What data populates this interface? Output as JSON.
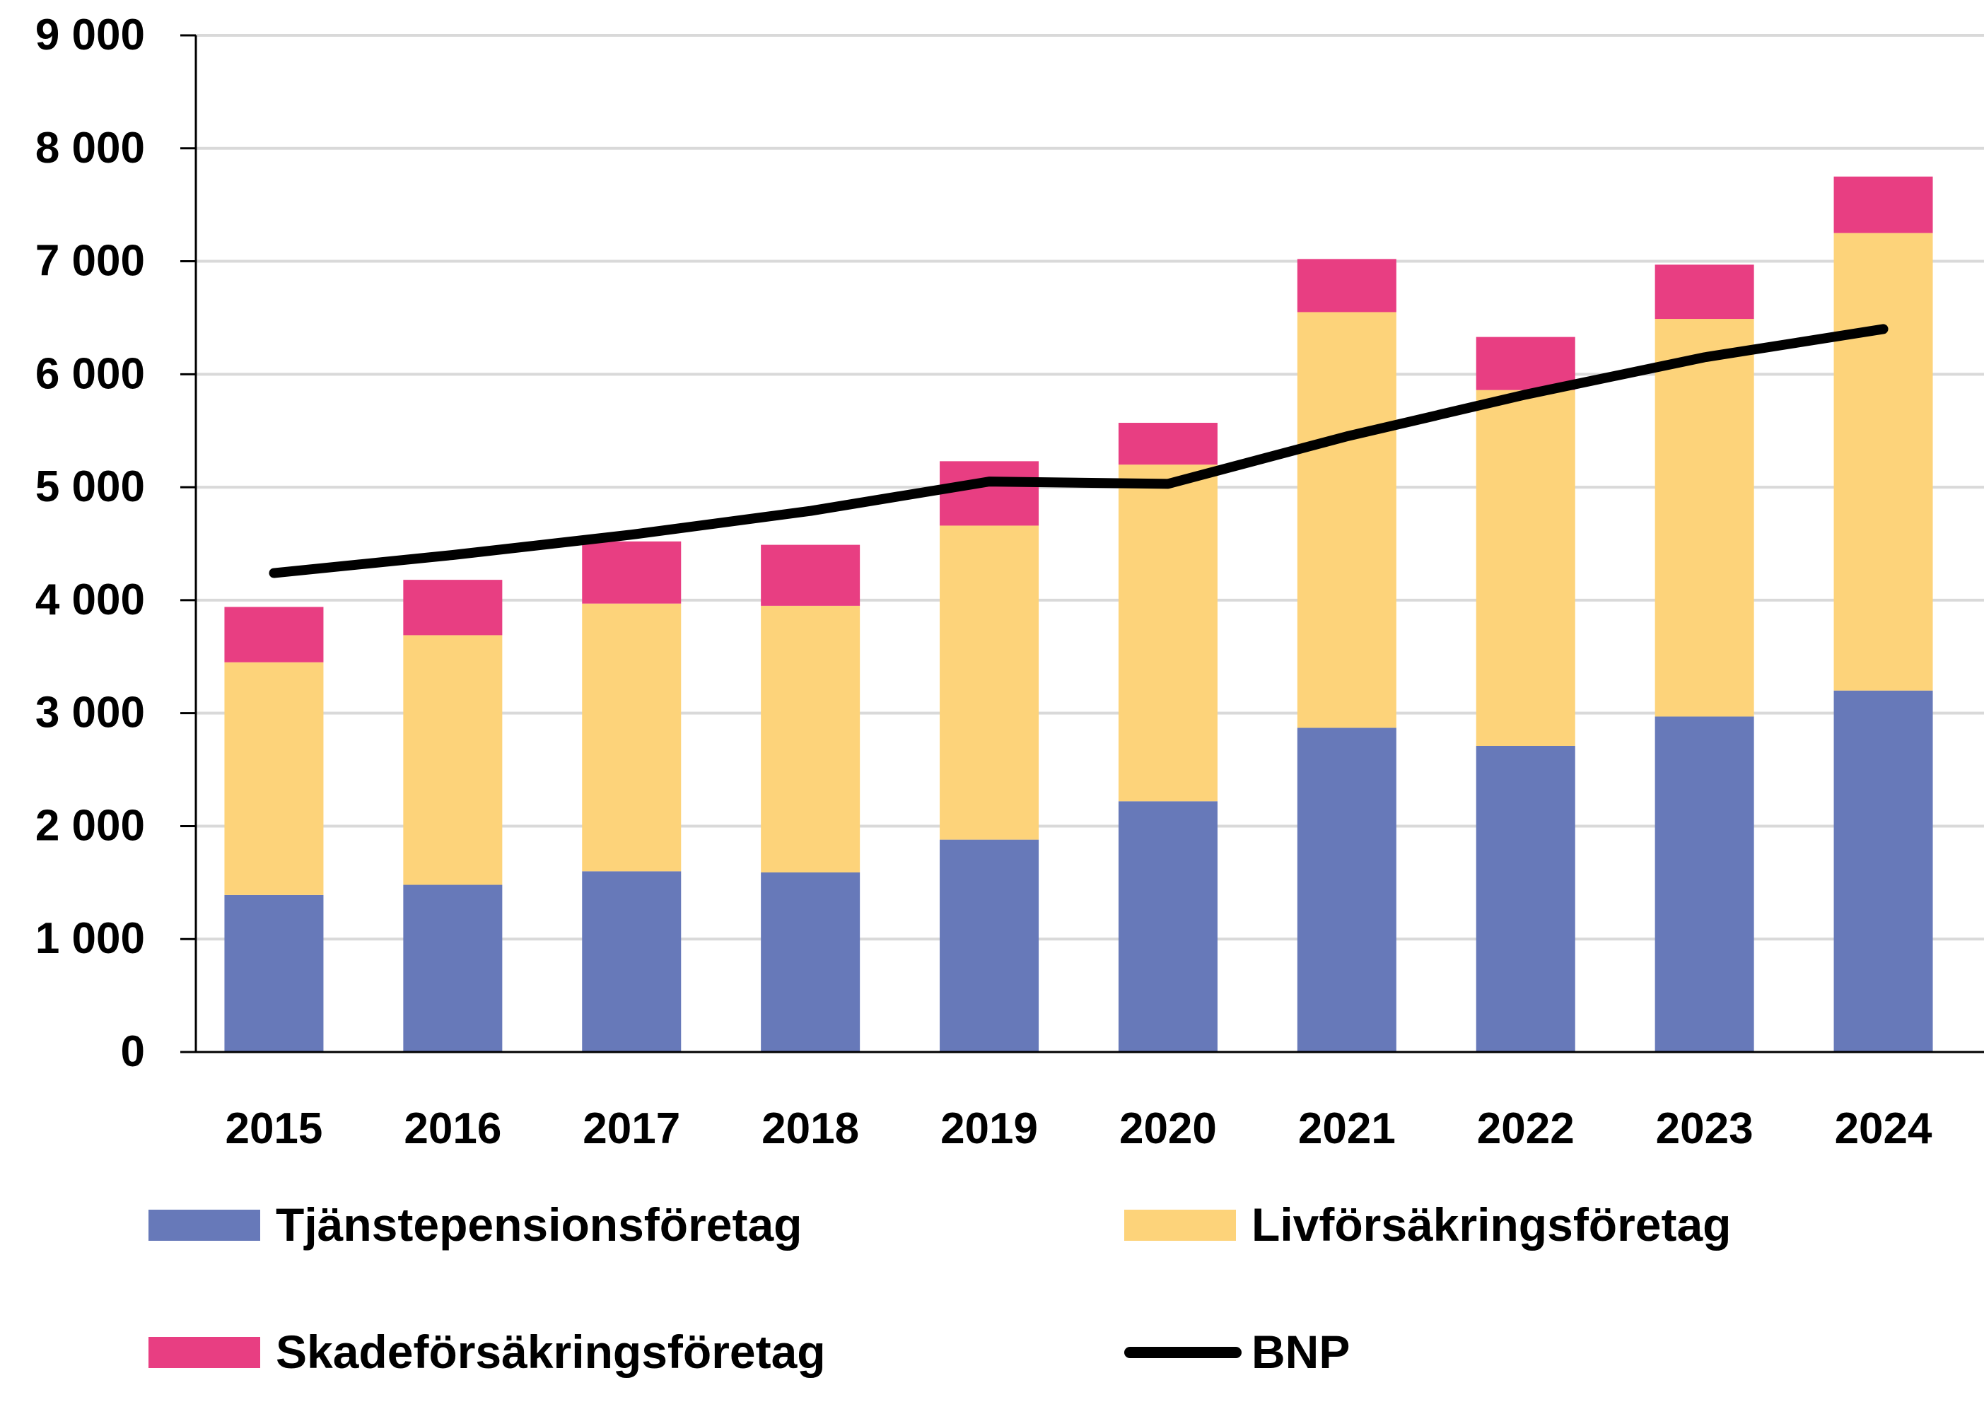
{
  "chart_data": {
    "type": "bar",
    "stacked": true,
    "title": "",
    "xlabel": "",
    "ylabel": "",
    "ylim": [
      0,
      9000
    ],
    "ytick_values": [
      0,
      1000,
      2000,
      3000,
      4000,
      5000,
      6000,
      7000,
      8000,
      9000
    ],
    "ytick_labels": [
      "0",
      "1 000",
      "2 000",
      "3 000",
      "4 000",
      "5 000",
      "6 000",
      "7 000",
      "8 000",
      "9 000"
    ],
    "grid": "horizontal",
    "categories": [
      "2015",
      "2016",
      "2017",
      "2018",
      "2019",
      "2020",
      "2021",
      "2022",
      "2023",
      "2024"
    ],
    "series": [
      {
        "name": "Tjänstepensionsföretag",
        "type": "bar",
        "color": "#6779b9",
        "values": [
          1390,
          1480,
          1600,
          1590,
          1880,
          2220,
          2870,
          2710,
          2970,
          3200
        ]
      },
      {
        "name": "Livförsäkringsföretag",
        "type": "bar",
        "color": "#fdd37a",
        "values": [
          2060,
          2210,
          2370,
          2360,
          2780,
          2980,
          3680,
          3150,
          3520,
          4050
        ]
      },
      {
        "name": "Skadeförsäkringsföretag",
        "type": "bar",
        "color": "#e83e82",
        "values": [
          490,
          490,
          550,
          540,
          570,
          370,
          470,
          470,
          480,
          500
        ]
      },
      {
        "name": "BNP",
        "type": "line",
        "color": "#000000",
        "values": [
          4240,
          4400,
          4580,
          4790,
          5050,
          5030,
          5450,
          5820,
          6150,
          6400
        ]
      }
    ],
    "legend": {
      "placement": "bottom",
      "items": [
        {
          "label": "Tjänstepensionsföretag",
          "color": "#6779b9",
          "marker": "box"
        },
        {
          "label": "Livförsäkringsföretag",
          "color": "#fdd37a",
          "marker": "box"
        },
        {
          "label": "Skadeförsäkringsföretag",
          "color": "#e83e82",
          "marker": "box"
        },
        {
          "label": "BNP",
          "color": "#000000",
          "marker": "line"
        }
      ]
    }
  }
}
